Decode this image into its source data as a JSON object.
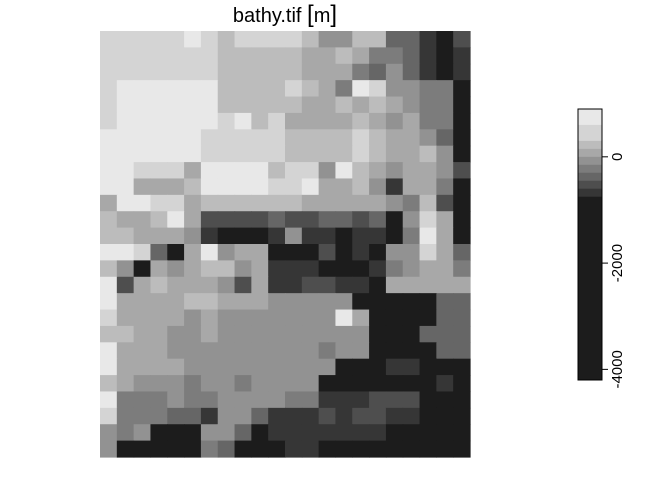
{
  "chart_data": {
    "type": "heatmap",
    "title": "bathy.tif",
    "unit": "m",
    "colorbar": {
      "ticks": [
        0,
        -2000,
        -4000
      ],
      "tick_labels": [
        "0",
        "-2000",
        "-4000"
      ],
      "range": [
        -4200,
        900
      ],
      "placement": "right",
      "levels": [
        {
          "from": 600,
          "to": 900,
          "color": "#e8e8e8"
        },
        {
          "from": 300,
          "to": 600,
          "color": "#d4d4d4"
        },
        {
          "from": 150,
          "to": 300,
          "color": "#bcbcbc"
        },
        {
          "from": 0,
          "to": 150,
          "color": "#a8a8a8"
        },
        {
          "from": -150,
          "to": 0,
          "color": "#929292"
        },
        {
          "from": -300,
          "to": -150,
          "color": "#7c7c7c"
        },
        {
          "from": -450,
          "to": -300,
          "color": "#666666"
        },
        {
          "from": -600,
          "to": -450,
          "color": "#4e4e4e"
        },
        {
          "from": -750,
          "to": -600,
          "color": "#363636"
        },
        {
          "from": -4200,
          "to": -750,
          "color": "#1c1c1c"
        }
      ]
    },
    "cell_classes": 10,
    "palette": [
      "#1c1c1c",
      "#363636",
      "#4e4e4e",
      "#666666",
      "#7c7c7c",
      "#929292",
      "#a8a8a8",
      "#bcbcbc",
      "#d4d4d4",
      "#e8e8e8"
    ],
    "grid": [
      [
        8,
        8,
        8,
        8,
        8,
        9,
        8,
        7,
        8,
        8,
        8,
        8,
        7,
        5,
        5,
        7,
        7,
        3,
        3,
        1,
        0,
        2
      ],
      [
        8,
        8,
        8,
        8,
        8,
        8,
        8,
        7,
        7,
        7,
        7,
        7,
        6,
        6,
        7,
        6,
        4,
        4,
        3,
        1,
        0,
        1
      ],
      [
        8,
        8,
        8,
        8,
        8,
        8,
        8,
        7,
        7,
        7,
        7,
        7,
        6,
        6,
        6,
        4,
        3,
        5,
        3,
        1,
        0,
        1
      ],
      [
        8,
        9,
        9,
        9,
        9,
        9,
        9,
        7,
        7,
        7,
        7,
        8,
        7,
        6,
        4,
        9,
        8,
        5,
        5,
        4,
        4,
        0
      ],
      [
        8,
        9,
        9,
        9,
        9,
        9,
        9,
        7,
        7,
        7,
        7,
        7,
        6,
        6,
        7,
        6,
        7,
        6,
        5,
        4,
        4,
        0
      ],
      [
        8,
        9,
        9,
        9,
        9,
        9,
        9,
        8,
        9,
        7,
        8,
        6,
        6,
        6,
        6,
        7,
        6,
        5,
        6,
        4,
        4,
        0
      ],
      [
        9,
        9,
        9,
        9,
        9,
        9,
        8,
        8,
        8,
        8,
        8,
        7,
        7,
        7,
        7,
        8,
        7,
        6,
        6,
        5,
        3,
        0
      ],
      [
        9,
        9,
        9,
        9,
        9,
        9,
        8,
        8,
        8,
        8,
        8,
        7,
        7,
        7,
        7,
        8,
        7,
        6,
        6,
        7,
        5,
        0
      ],
      [
        9,
        9,
        8,
        8,
        8,
        6,
        9,
        9,
        9,
        9,
        7,
        8,
        8,
        5,
        9,
        7,
        6,
        5,
        6,
        6,
        5,
        2
      ],
      [
        9,
        9,
        6,
        6,
        6,
        7,
        9,
        9,
        9,
        9,
        8,
        8,
        9,
        6,
        6,
        7,
        5,
        1,
        6,
        6,
        4,
        0
      ],
      [
        6,
        9,
        9,
        8,
        8,
        6,
        7,
        7,
        7,
        7,
        7,
        7,
        6,
        6,
        6,
        6,
        6,
        5,
        4,
        7,
        2,
        0
      ],
      [
        7,
        6,
        6,
        7,
        9,
        6,
        2,
        2,
        2,
        2,
        3,
        2,
        2,
        3,
        3,
        2,
        3,
        0,
        5,
        8,
        6,
        0
      ],
      [
        7,
        7,
        6,
        6,
        6,
        5,
        1,
        0,
        0,
        0,
        1,
        5,
        1,
        1,
        0,
        1,
        1,
        0,
        4,
        9,
        6,
        0
      ],
      [
        9,
        9,
        8,
        3,
        0,
        6,
        9,
        5,
        6,
        6,
        0,
        0,
        0,
        2,
        0,
        1,
        0,
        5,
        5,
        8,
        6,
        3
      ],
      [
        7,
        5,
        0,
        6,
        5,
        6,
        7,
        7,
        5,
        6,
        1,
        1,
        1,
        0,
        0,
        0,
        1,
        4,
        5,
        6,
        6,
        4
      ],
      [
        9,
        2,
        6,
        7,
        6,
        6,
        6,
        5,
        2,
        6,
        1,
        1,
        2,
        2,
        1,
        1,
        0,
        6,
        6,
        6,
        6,
        6
      ],
      [
        9,
        6,
        6,
        6,
        6,
        7,
        7,
        6,
        6,
        6,
        5,
        5,
        5,
        5,
        5,
        0,
        0,
        0,
        0,
        0,
        3,
        3
      ],
      [
        8,
        6,
        6,
        6,
        6,
        5,
        6,
        5,
        5,
        5,
        5,
        5,
        5,
        5,
        9,
        6,
        0,
        0,
        0,
        0,
        3,
        3
      ],
      [
        7,
        7,
        6,
        6,
        5,
        5,
        6,
        5,
        5,
        5,
        5,
        5,
        5,
        5,
        5,
        5,
        0,
        0,
        0,
        3,
        3,
        3
      ],
      [
        9,
        6,
        6,
        6,
        5,
        5,
        5,
        5,
        5,
        5,
        5,
        5,
        5,
        4,
        5,
        5,
        0,
        0,
        0,
        0,
        3,
        3
      ],
      [
        9,
        6,
        6,
        6,
        6,
        5,
        5,
        5,
        5,
        5,
        5,
        5,
        5,
        5,
        0,
        0,
        0,
        1,
        1,
        0,
        0,
        0
      ],
      [
        7,
        6,
        5,
        5,
        5,
        4,
        5,
        5,
        4,
        5,
        5,
        5,
        5,
        0,
        0,
        0,
        0,
        0,
        0,
        0,
        1,
        0
      ],
      [
        9,
        4,
        4,
        4,
        5,
        4,
        4,
        5,
        5,
        5,
        5,
        4,
        4,
        1,
        1,
        1,
        2,
        2,
        2,
        0,
        0,
        0
      ],
      [
        8,
        4,
        4,
        4,
        3,
        3,
        1,
        5,
        5,
        3,
        1,
        1,
        1,
        2,
        1,
        2,
        2,
        1,
        1,
        0,
        0,
        0
      ],
      [
        5,
        4,
        5,
        0,
        0,
        0,
        5,
        5,
        3,
        0,
        1,
        1,
        1,
        1,
        1,
        1,
        1,
        0,
        0,
        0,
        0,
        0
      ],
      [
        5,
        0,
        0,
        0,
        0,
        0,
        4,
        3,
        0,
        0,
        0,
        1,
        1,
        0,
        0,
        0,
        0,
        0,
        0,
        0,
        0,
        0
      ]
    ]
  }
}
